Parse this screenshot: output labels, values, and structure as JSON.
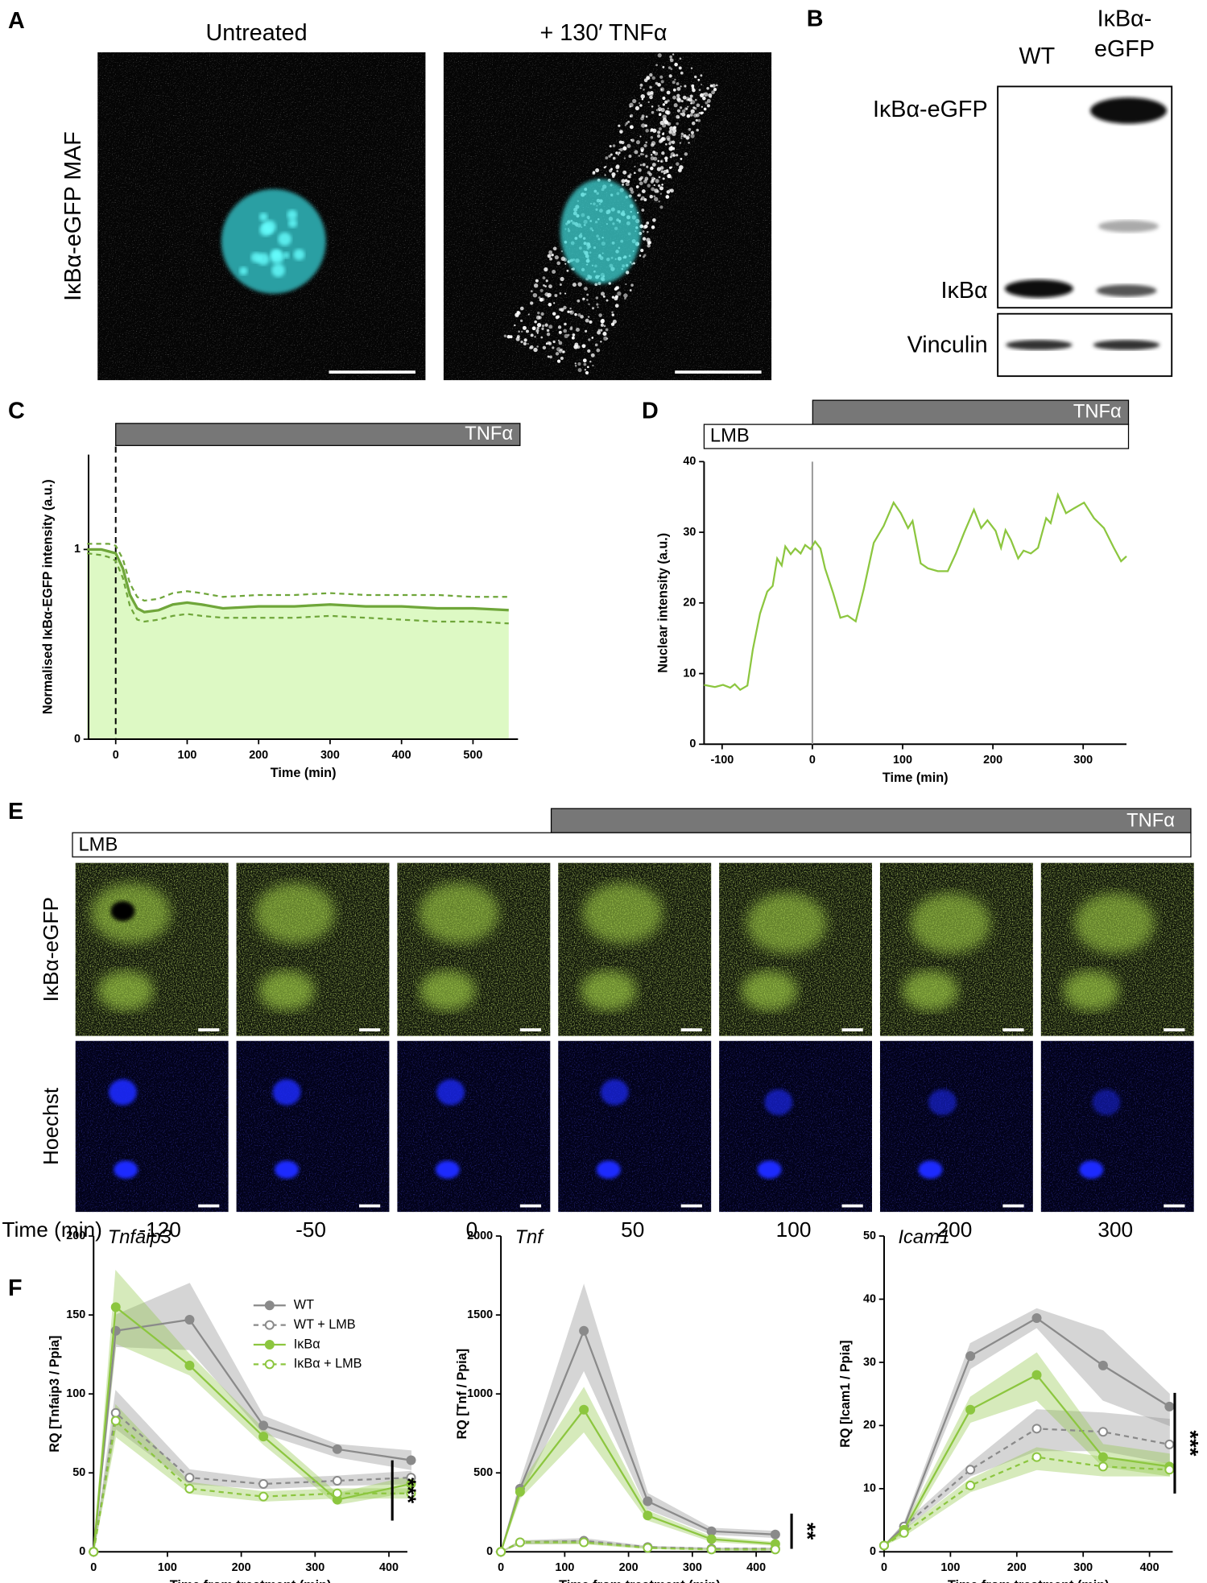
{
  "panel_labels": [
    "A",
    "B",
    "C",
    "D",
    "E",
    "F"
  ],
  "panel_a": {
    "row_label": "IκBα-eGFP MAF",
    "columns": [
      "Untreated",
      "+ 130′ TNFα"
    ]
  },
  "panel_b": {
    "lane_1": "WT",
    "lane_2_lines": [
      "IκBα-",
      "eGFP"
    ],
    "bands": [
      "IκBα-eGFP",
      "IκBα",
      "Vinculin"
    ]
  },
  "panel_e": {
    "treatments": [
      "LMB",
      "TNFα"
    ],
    "rows": [
      "IκBα-eGFP",
      "Hoechst"
    ],
    "time_label": "Time (min)",
    "times": [
      "-120",
      "-50",
      "0",
      "50",
      "100",
      "200",
      "300"
    ]
  },
  "chart_data": [
    {
      "type": "line",
      "treatment": "TNFα",
      "y_label": "Normalised IκBα-EGFP intensity (a.u.)",
      "x_label": "Time (min)",
      "xlim": [
        -38,
        563
      ],
      "ylim": [
        0,
        1.5
      ],
      "xticks": [
        0,
        100,
        200,
        300,
        400,
        500
      ],
      "yticks": [
        0,
        1
      ],
      "vline": 0,
      "vline_dash": true,
      "vline_color": "#000000",
      "x": [
        -40,
        -20,
        -10,
        0,
        10,
        20,
        30,
        40,
        60,
        80,
        100,
        120,
        150,
        200,
        250,
        300,
        350,
        400,
        450,
        500,
        550
      ],
      "series": [
        {
          "color": "#6fa63a",
          "fill": true,
          "area_color": "#ddf9c4",
          "values": [
            1.0,
            1.0,
            0.99,
            0.98,
            0.9,
            0.76,
            0.69,
            0.67,
            0.68,
            0.71,
            0.72,
            0.71,
            0.69,
            0.7,
            0.7,
            0.71,
            0.7,
            0.7,
            0.69,
            0.69,
            0.68
          ]
        },
        {
          "color": "#6fa63a",
          "dash": true,
          "values": [
            1.03,
            1.03,
            1.03,
            1.02,
            0.95,
            0.82,
            0.75,
            0.73,
            0.74,
            0.77,
            0.78,
            0.77,
            0.75,
            0.76,
            0.76,
            0.77,
            0.76,
            0.76,
            0.76,
            0.75,
            0.75
          ]
        },
        {
          "color": "#6fa63a",
          "dash": true,
          "values": [
            0.98,
            0.97,
            0.96,
            0.94,
            0.85,
            0.7,
            0.63,
            0.62,
            0.63,
            0.65,
            0.66,
            0.65,
            0.64,
            0.64,
            0.64,
            0.65,
            0.64,
            0.63,
            0.62,
            0.62,
            0.61
          ]
        }
      ]
    },
    {
      "type": "line",
      "treatments": [
        "LMB",
        "TNFα"
      ],
      "y_label": "Nuclear intensity (a.u.)",
      "x_label": "Time (min)",
      "xlim": [
        -120,
        348
      ],
      "ylim": [
        0,
        40
      ],
      "xticks": [
        -100,
        0,
        100,
        200,
        300
      ],
      "yticks": [
        0,
        10,
        20,
        30,
        40
      ],
      "vline": 0,
      "vline_color": "#999999",
      "x": [
        -120,
        -108,
        -99,
        -91,
        -86,
        -80,
        -72,
        -66,
        -58,
        -50,
        -44,
        -39,
        -34,
        -30,
        -24,
        -19,
        -13,
        -8,
        -2,
        3,
        9,
        14,
        23,
        31,
        39,
        48,
        57,
        68,
        79,
        90,
        98,
        106,
        111,
        120,
        128,
        139,
        150,
        159,
        168,
        179,
        187,
        194,
        203,
        209,
        214,
        220,
        228,
        234,
        242,
        250,
        259,
        264,
        272,
        281,
        290,
        301,
        312,
        323,
        334,
        342,
        348
      ],
      "series": [
        {
          "color": "#8cc63f",
          "values": [
            8.4,
            8.1,
            8.4,
            8.0,
            8.5,
            7.7,
            8.3,
            13.4,
            18.5,
            21.6,
            22.4,
            26.3,
            25.3,
            28.0,
            26.9,
            27.7,
            27.0,
            28.2,
            27.6,
            28.7,
            27.7,
            24.9,
            21.4,
            17.9,
            18.2,
            17.4,
            22.0,
            28.5,
            30.9,
            34.2,
            32.7,
            30.6,
            31.6,
            25.6,
            24.9,
            24.5,
            24.5,
            27.0,
            29.9,
            33.2,
            30.6,
            31.7,
            30.2,
            27.8,
            30.3,
            28.9,
            26.3,
            27.4,
            27.0,
            27.8,
            32.0,
            31.3,
            35.3,
            32.7,
            33.4,
            34.2,
            32.0,
            30.6,
            27.8,
            25.9,
            26.6
          ]
        }
      ]
    },
    {
      "type": "line",
      "title": "Tnfaip3",
      "y_label": "RQ [Tnfaip3 / Ppia]",
      "x_label": "Time from treatment (min)",
      "significance": "***",
      "legend": true,
      "xlim": [
        0,
        425
      ],
      "ylim": [
        0,
        200
      ],
      "xticks": [
        0,
        100,
        200,
        300,
        400
      ],
      "yticks": [
        0,
        50,
        100,
        150,
        200
      ],
      "x": [
        0,
        30,
        130,
        230,
        330,
        430
      ],
      "series": [
        {
          "name": "WT",
          "color": "#8a8a8a",
          "marker": "filled",
          "values": [
            0,
            140,
            147,
            80,
            65,
            58
          ],
          "lower": [
            0,
            130,
            128,
            75,
            60,
            52
          ],
          "upper": [
            0,
            150,
            170,
            86,
            68,
            64
          ]
        },
        {
          "name": "WT + LMB",
          "color": "#8a8a8a",
          "marker": "open",
          "dash": true,
          "values": [
            0,
            88,
            47,
            43,
            45,
            47
          ],
          "lower": [
            0,
            78,
            43,
            40,
            42,
            43
          ],
          "upper": [
            0,
            102,
            52,
            46,
            48,
            51
          ]
        },
        {
          "name": "IκBα",
          "color": "#8cc63f",
          "marker": "filled",
          "values": [
            0,
            155,
            118,
            73,
            33,
            43
          ],
          "lower": [
            0,
            132,
            112,
            68,
            30,
            38
          ],
          "upper": [
            0,
            178,
            125,
            78,
            37,
            48
          ]
        },
        {
          "name": "IκBα + LMB",
          "color": "#8cc63f",
          "marker": "open",
          "dash": true,
          "values": [
            0,
            83,
            40,
            35,
            37,
            37
          ],
          "lower": [
            0,
            73,
            37,
            32,
            34,
            34
          ],
          "upper": [
            0,
            93,
            44,
            38,
            40,
            40
          ]
        }
      ]
    },
    {
      "type": "line",
      "title": "Tnf",
      "y_label": "RQ [Tnf / Ppia]",
      "x_label": "Time from treatment (min)",
      "significance": "**",
      "xlim": [
        0,
        435
      ],
      "ylim": [
        0,
        2000
      ],
      "xticks": [
        0,
        100,
        200,
        300,
        400
      ],
      "yticks": [
        0,
        500,
        1000,
        1500,
        2000
      ],
      "x": [
        0,
        30,
        130,
        230,
        330,
        430
      ],
      "series": [
        {
          "color": "#8a8a8a",
          "marker": "filled",
          "values": [
            0,
            400,
            1400,
            320,
            130,
            110
          ],
          "lower": [
            0,
            360,
            1150,
            270,
            110,
            90
          ],
          "upper": [
            0,
            440,
            1690,
            370,
            150,
            130
          ]
        },
        {
          "color": "#8a8a8a",
          "marker": "open",
          "dash": true,
          "values": [
            0,
            60,
            70,
            30,
            20,
            20
          ],
          "lower": [
            0,
            50,
            55,
            25,
            15,
            15
          ],
          "upper": [
            0,
            70,
            85,
            35,
            25,
            25
          ]
        },
        {
          "color": "#8cc63f",
          "marker": "filled",
          "values": [
            0,
            380,
            900,
            230,
            80,
            50
          ],
          "lower": [
            0,
            340,
            760,
            200,
            65,
            40
          ],
          "upper": [
            0,
            420,
            1040,
            260,
            95,
            60
          ]
        },
        {
          "color": "#8cc63f",
          "marker": "open",
          "dash": true,
          "values": [
            0,
            60,
            60,
            25,
            15,
            15
          ],
          "lower": [
            0,
            50,
            50,
            20,
            10,
            10
          ],
          "upper": [
            0,
            70,
            70,
            30,
            20,
            20
          ]
        }
      ]
    },
    {
      "type": "line",
      "title": "Icam1",
      "y_label": "RQ [Icam1 / Ppia]",
      "x_label": "Time from treatment (min)",
      "significance": "***",
      "xlim": [
        0,
        435
      ],
      "ylim": [
        0,
        50
      ],
      "xticks": [
        0,
        100,
        200,
        300,
        400
      ],
      "yticks": [
        0,
        10,
        20,
        30,
        40,
        50
      ],
      "x": [
        0,
        30,
        130,
        230,
        330,
        430
      ],
      "series": [
        {
          "color": "#8a8a8a",
          "marker": "filled",
          "values": [
            1,
            4,
            31,
            37,
            29.5,
            23
          ],
          "lower": [
            1,
            3.5,
            29,
            35.5,
            24,
            20
          ],
          "upper": [
            1,
            4.5,
            33,
            38.5,
            35,
            25
          ]
        },
        {
          "color": "#8a8a8a",
          "marker": "open",
          "dash": true,
          "values": [
            1,
            4,
            13,
            19.5,
            19,
            17
          ],
          "lower": [
            1,
            3.5,
            12,
            16,
            16,
            14
          ],
          "upper": [
            1,
            4.5,
            14,
            22.5,
            22,
            21
          ]
        },
        {
          "color": "#8cc63f",
          "marker": "filled",
          "values": [
            1,
            3.5,
            22.5,
            28,
            15,
            13.5
          ],
          "lower": [
            1,
            3,
            20.5,
            24,
            13.5,
            12
          ],
          "upper": [
            1,
            4,
            24.5,
            31.5,
            17,
            15.5
          ]
        },
        {
          "color": "#8cc63f",
          "marker": "open",
          "dash": true,
          "values": [
            1,
            3,
            10.5,
            15,
            13.5,
            13
          ],
          "lower": [
            1,
            2.5,
            9.5,
            13,
            12,
            12
          ],
          "upper": [
            1,
            3.5,
            11.5,
            16.5,
            15,
            14
          ]
        }
      ]
    }
  ]
}
